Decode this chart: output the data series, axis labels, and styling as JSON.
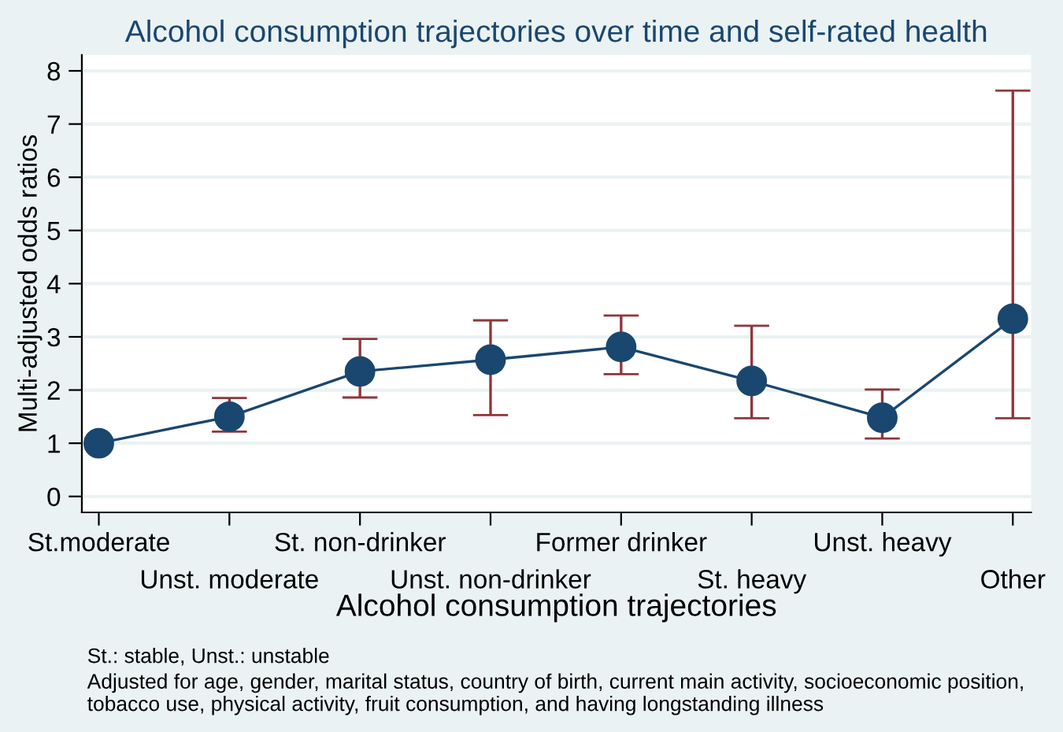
{
  "chart_data": {
    "type": "line",
    "title": "Alcohol consumption trajectories over time and self-rated health",
    "xlabel": "Alcohol consumption trajectories",
    "ylabel": "Multi-adjusted odds ratios",
    "categories": [
      "St.moderate",
      "Unst. moderate",
      "St. non-drinker",
      "Unst. non-drinker",
      "Former drinker",
      "St. heavy",
      "Unst. heavy",
      "Other"
    ],
    "series": [
      {
        "color": "#1a476f",
        "values": [
          1.0,
          1.5,
          2.35,
          2.57,
          2.81,
          2.17,
          1.48,
          3.34
        ],
        "errors": [
          null,
          [
            1.22,
            1.85
          ],
          [
            1.86,
            2.96
          ],
          [
            1.53,
            3.31
          ],
          [
            2.3,
            3.4
          ],
          [
            1.47,
            3.21
          ],
          [
            1.09,
            2.01
          ],
          [
            1.47,
            7.63
          ]
        ]
      }
    ],
    "ylim": [
      -0.3,
      8.3
    ],
    "yticks": [
      0,
      1,
      2,
      3,
      4,
      5,
      6,
      7,
      8
    ],
    "grid": "y",
    "marker": "circle",
    "line_style": "solid",
    "legend": false,
    "annotations": [
      "St.: stable, Unst.: unstable",
      "Adjusted for age, gender, marital status, country of birth, current main activity, socioeconomic position, tobacco use, physical activity, fruit consumption, and having longstanding illness"
    ]
  }
}
